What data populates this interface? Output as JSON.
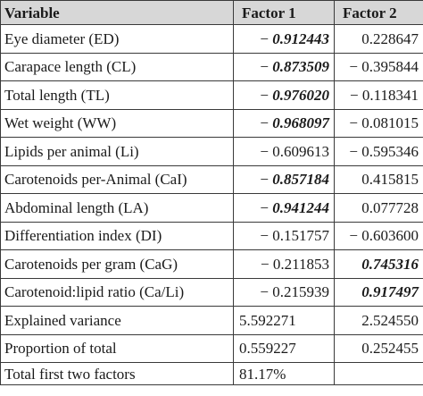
{
  "header": {
    "col1": "Variable",
    "col2": "Factor 1",
    "col3": "Factor 2"
  },
  "rows": [
    {
      "variable": "Eye diameter (ED)",
      "f1_sign": "−",
      "f1_num": "0.912443",
      "f2": "0.228647"
    },
    {
      "variable": "Carapace length (CL)",
      "f1_sign": "−",
      "f1_num": "0.873509",
      "f2": "− 0.395844"
    },
    {
      "variable": "Total length (TL)",
      "f1_sign": "−",
      "f1_num": "0.976020",
      "f2": "− 0.118341"
    },
    {
      "variable": "Wet weight (WW)",
      "f1_sign": "−",
      "f1_num": "0.968097",
      "f2": "− 0.081015"
    },
    {
      "variable": "Lipids per animal (Li)",
      "f1": "− 0.609613",
      "f2": "− 0.595346"
    },
    {
      "variable": "Carotenoids per-Animal (CaI)",
      "f1_sign": "−",
      "f1_num": "0.857184",
      "f2": "0.415815"
    },
    {
      "variable": "Abdominal length (LA)",
      "f1_sign": "−",
      "f1_num": "0.941244",
      "f2": "0.077728"
    },
    {
      "variable": "Differentiation index (DI)",
      "f1": "− 0.151757",
      "f2": "− 0.603600"
    },
    {
      "variable": "Carotenoids per gram (CaG)",
      "f1": "− 0.211853",
      "f2": "0.745316"
    },
    {
      "variable": "Carotenoid:lipid ratio (Ca/Li)",
      "f1": "− 0.215939",
      "f2": "0.917497"
    },
    {
      "variable": "Explained variance",
      "f1": "5.592271",
      "f2": "2.524550"
    },
    {
      "variable": "Proportion of total",
      "f1": "0.559227",
      "f2": "0.252455"
    },
    {
      "variable": "Total first two factors",
      "f1": "81.17%",
      "f2": ""
    }
  ]
}
